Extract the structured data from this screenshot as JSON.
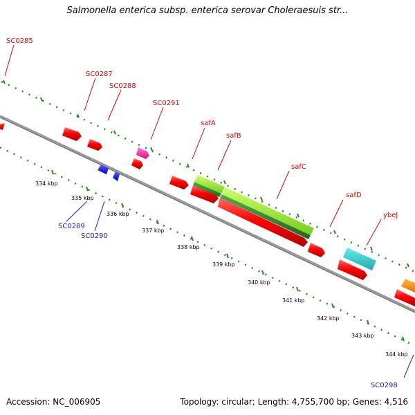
{
  "title": "Salmonella enterica subsp. enterica serovar Choleraesuis str...",
  "footer": {
    "accession": "Accession: NC_006905",
    "summary": "Topology: circular; Length: 4,755,700 bp; Genes: 4,516"
  },
  "scale_labels": [
    "334 kbp",
    "335 kbp",
    "336 kbp",
    "337 kbp",
    "338 kbp",
    "339 kbp",
    "340 kbp",
    "341 kbp",
    "342 kbp",
    "343 kbp",
    "344 kbp"
  ],
  "gene_labels": {
    "SC0285": "SC0285",
    "SC0287": "SC0287",
    "SC0288": "SC0288",
    "SC0291": "SC0291",
    "safA": "safA",
    "safB": "safB",
    "safC": "safC",
    "safD": "safD",
    "ybeJ": "ybeJ",
    "SC0289": "SC0289",
    "SC0290": "SC0290",
    "SC0298": "SC0298"
  },
  "colors": {
    "forward_gene": "#ff0000",
    "reverse_gene": "#0000ff",
    "magenta_gene": "#ff33aa",
    "cyan_gene": "#33cccc",
    "orange_gene": "#ff9900",
    "lightgreen_gene": "#99ee33",
    "darkgreen_gene": "#338833",
    "backbone": "#888888",
    "ruler": "#228822"
  }
}
